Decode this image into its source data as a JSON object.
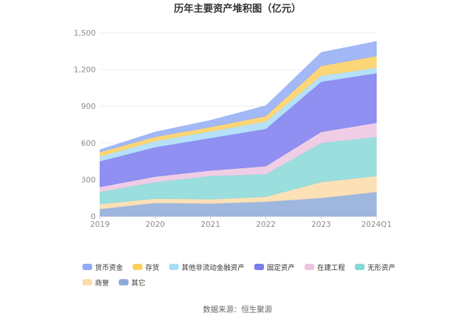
{
  "chart_data": {
    "type": "area",
    "stacked": true,
    "title": "历年主要资产堆积图（亿元）",
    "categories": [
      "2019",
      "2020",
      "2021",
      "2022",
      "2023",
      "2024Q1"
    ],
    "y_ticks": [
      "0",
      "300",
      "600",
      "900",
      "1,200",
      "1,500"
    ],
    "ylim": [
      0,
      1500
    ],
    "grid": true,
    "legend_position": "bottom",
    "series": [
      {
        "name": "其它",
        "color": "#8eaad8",
        "values": [
          60,
          110,
          105,
          120,
          150,
          200
        ]
      },
      {
        "name": "商誉",
        "color": "#fbdcaa",
        "values": [
          40,
          35,
          35,
          40,
          130,
          130
        ]
      },
      {
        "name": "无形资产",
        "color": "#88d8d8",
        "values": [
          100,
          135,
          190,
          185,
          320,
          320
        ]
      },
      {
        "name": "在建工程",
        "color": "#ecc6e0",
        "values": [
          40,
          45,
          45,
          65,
          90,
          115
        ]
      },
      {
        "name": "固定资产",
        "color": "#7b7cf0",
        "values": [
          210,
          240,
          265,
          305,
          410,
          405
        ]
      },
      {
        "name": "其他非流动金融资产",
        "color": "#a9dcf8",
        "values": [
          40,
          50,
          55,
          60,
          50,
          45
        ]
      },
      {
        "name": "存货",
        "color": "#fccf5f",
        "values": [
          35,
          35,
          35,
          45,
          80,
          95
        ]
      },
      {
        "name": "货币资金",
        "color": "#93abf6",
        "values": [
          20,
          40,
          55,
          85,
          110,
          120
        ]
      }
    ],
    "legend_order": [
      "货币资金",
      "存货",
      "其他非流动金融资产",
      "固定资产",
      "在建工程",
      "无形资产",
      "商誉",
      "其它"
    ]
  },
  "source": "数据来源：恒生聚源"
}
